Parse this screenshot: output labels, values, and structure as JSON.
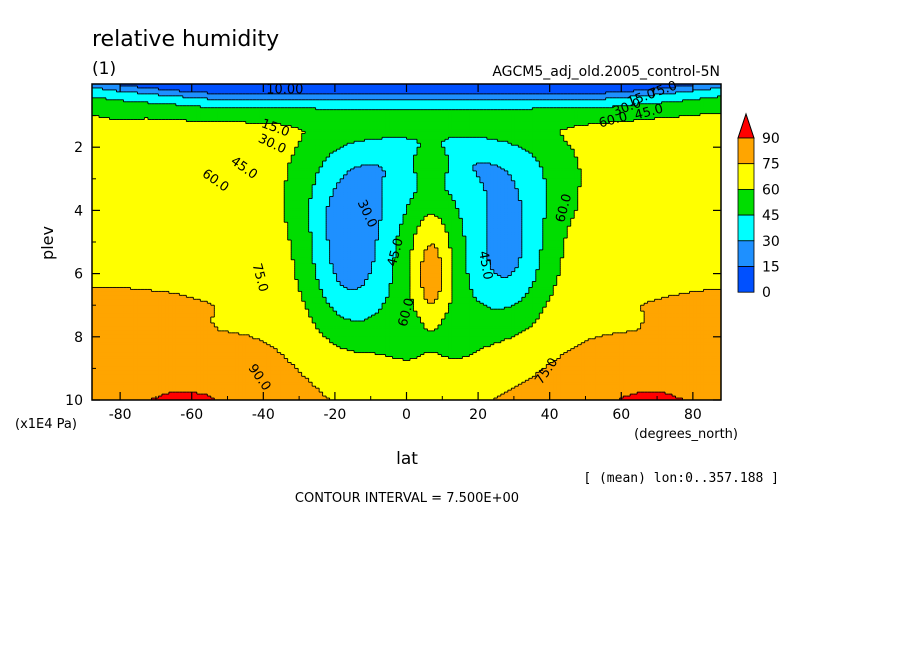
{
  "chart_data": {
    "type": "heatmap",
    "title": "relative humidity",
    "subtitle": "(1)",
    "dataset_label": "AGCM5_adj_old.2005_control-5N",
    "xlabel": "lat",
    "x_units": "(degrees_north)",
    "ylabel": "plev",
    "y_units": "(x1E4 Pa)",
    "xlim": [
      -87.86,
      87.86
    ],
    "ylim": [
      10,
      0
    ],
    "x_ticks": [
      "-80",
      "-60",
      "-40",
      "-20",
      "0",
      "20",
      "40",
      "60",
      "80"
    ],
    "y_ticks": [
      "2",
      "4",
      "6",
      "8",
      "10"
    ],
    "mean_note": "[ (mean) lon:0..357.188 ]",
    "contour_interval_text": "CONTOUR INTERVAL = 7.500E+00",
    "contour_labels": [
      "10.00",
      "15.0",
      "30.0",
      "45.0",
      "60.0",
      "75.0",
      "90.0",
      "30.0",
      "45.0",
      "60.0",
      "45.0",
      "60.0",
      "75.0",
      "75.0",
      "15.0",
      "30.0",
      "45.0",
      "60.0"
    ],
    "colorbar": {
      "labels": [
        "90",
        "75",
        "60",
        "45",
        "30",
        "15",
        "0"
      ],
      "colors": [
        "#ff0000",
        "#ffa500",
        "#ffff00",
        "#00dd00",
        "#00ffff",
        "#1e90ff",
        "#0050ff"
      ]
    },
    "levels": [
      {
        "min": 90,
        "color": "#ff0000"
      },
      {
        "min": 75,
        "color": "#ffa500"
      },
      {
        "min": 60,
        "color": "#ffff00"
      },
      {
        "min": 45,
        "color": "#00dd00"
      },
      {
        "min": 30,
        "color": "#00ffff"
      },
      {
        "min": 15,
        "color": "#1e90ff"
      },
      {
        "min": 0,
        "color": "#0050ff"
      }
    ]
  }
}
